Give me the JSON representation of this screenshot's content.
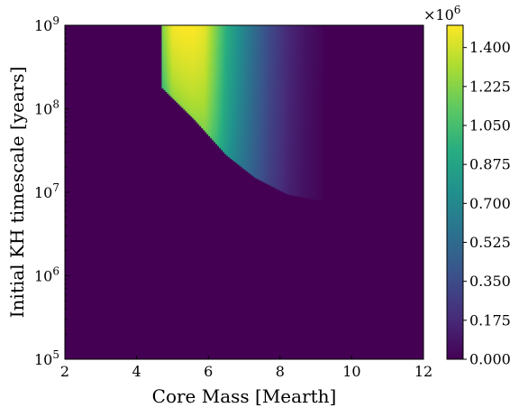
{
  "chart_data": {
    "type": "heatmap",
    "xlabel": "Core Mass [Mearth]",
    "ylabel": "Initial KH timescale [years]",
    "xlim": [
      2,
      12
    ],
    "ylim": [
      100000,
      1000000000
    ],
    "y_scale": "log",
    "x_ticks": [
      2,
      4,
      6,
      8,
      10,
      12
    ],
    "x_tick_labels": [
      "2",
      "4",
      "6",
      "8",
      "10",
      "12"
    ],
    "y_ticks": [
      100000,
      1000000,
      10000000,
      100000000,
      1000000000
    ],
    "y_tick_labels": [
      {
        "base": "10",
        "exp": "5"
      },
      {
        "base": "10",
        "exp": "6"
      },
      {
        "base": "10",
        "exp": "7"
      },
      {
        "base": "10",
        "exp": "8"
      },
      {
        "base": "10",
        "exp": "9"
      }
    ],
    "colormap": "viridis",
    "colorbar": {
      "range": [
        0,
        1500000
      ],
      "multiplier": {
        "base": "×10",
        "exp": "6"
      },
      "ticks": [
        0,
        175000,
        350000,
        525000,
        700000,
        875000,
        1050000,
        1225000,
        1400000
      ],
      "tick_labels": [
        "0.000",
        "0.175",
        "0.350",
        "0.525",
        "0.700",
        "0.875",
        "1.050",
        "1.225",
        "1.400"
      ]
    },
    "region": {
      "description_values": "Nonzero values only for core mass between about 4.7 and 9.2 and KH timescale above a mass-dependent threshold; peak near core mass 5-6 at long KH timescales.",
      "threshold_log10": [
        {
          "x": 4.7,
          "y": 8.26
        },
        {
          "x": 5.6,
          "y": 7.88
        },
        {
          "x": 6.5,
          "y": 7.45
        },
        {
          "x": 7.3,
          "y": 7.18
        },
        {
          "x": 8.2,
          "y": 6.98
        },
        {
          "x": 9.2,
          "y": 6.9
        }
      ],
      "columns": [
        {
          "x": 4.7,
          "value": 1200000
        },
        {
          "x": 5.0,
          "value": 1480000
        },
        {
          "x": 5.3,
          "value": 1500000
        },
        {
          "x": 5.6,
          "value": 1500000
        },
        {
          "x": 5.9,
          "value": 1450000
        },
        {
          "x": 6.2,
          "value": 1220000
        },
        {
          "x": 6.5,
          "value": 950000
        },
        {
          "x": 6.9,
          "value": 720000
        },
        {
          "x": 7.3,
          "value": 520000
        },
        {
          "x": 7.7,
          "value": 340000
        },
        {
          "x": 8.2,
          "value": 180000
        },
        {
          "x": 8.7,
          "value": 80000
        },
        {
          "x": 9.2,
          "value": 15000
        }
      ]
    }
  }
}
